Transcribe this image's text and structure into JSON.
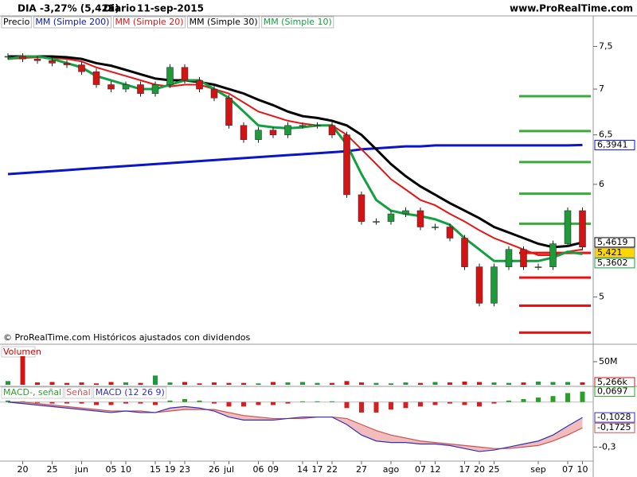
{
  "chart_data": [
    {
      "type": "candlestick",
      "title": "DIA",
      "subtitle": "-3,27% (5,421)",
      "period": "Diario",
      "date": "11-sep-2015",
      "source": "www.ProRealTime.com",
      "note": "© ProRealTime.com Históricos ajustados con dividendos",
      "log": true,
      "ylim": [
        4.65,
        7.88
      ],
      "yticks": [
        {
          "value": 7.5,
          "label": "7,5"
        },
        7,
        {
          "value": 6.5,
          "label": "6,5"
        },
        6,
        5
      ],
      "candle_colors": {
        "up": "#1e9a3a",
        "down": "#d41414"
      },
      "categories": [
        null,
        "20",
        null,
        "25",
        null,
        "jun",
        null,
        "05",
        "10",
        null,
        "15",
        "19",
        "23",
        null,
        "26",
        "jul",
        null,
        "06",
        "09",
        null,
        "14",
        "17",
        "22",
        null,
        "27",
        null,
        "ago",
        null,
        "07",
        "12",
        null,
        "17",
        "20",
        "25",
        null,
        null,
        "sep",
        null,
        "07",
        "10"
      ],
      "series": [
        {
          "name": "Precio",
          "color": "#000000",
          "last_label": "5,421",
          "values": [
            7.38,
            7.35,
            7.33,
            7.3,
            7.28,
            7.2,
            7.05,
            7.0,
            7.05,
            6.95,
            7.05,
            7.25,
            7.1,
            7.0,
            6.9,
            6.6,
            6.45,
            6.55,
            6.5,
            6.6,
            6.6,
            6.6,
            6.5,
            5.9,
            5.65,
            5.65,
            5.72,
            5.75,
            5.6,
            5.6,
            5.5,
            5.25,
            4.95,
            5.25,
            5.4,
            5.25,
            5.25,
            5.45,
            5.75,
            5.421
          ]
        },
        {
          "name": "MM (Simple 200)",
          "color": "#0a14c8",
          "last_label": "6,3941",
          "values": [
            6.1,
            6.11,
            6.12,
            6.13,
            6.14,
            6.15,
            6.16,
            6.17,
            6.18,
            6.19,
            6.2,
            6.21,
            6.22,
            6.23,
            6.24,
            6.25,
            6.26,
            6.27,
            6.28,
            6.29,
            6.3,
            6.31,
            6.32,
            6.33,
            6.35,
            6.36,
            6.37,
            6.38,
            6.38,
            6.39,
            6.39,
            6.39,
            6.39,
            6.39,
            6.39,
            6.39,
            6.39,
            6.39,
            6.39,
            6.3941
          ]
        },
        {
          "name": "MM (Simple 20)",
          "color": "#e81414",
          "values": [
            7.35,
            7.36,
            7.37,
            7.36,
            7.35,
            7.32,
            7.25,
            7.2,
            7.15,
            7.1,
            7.05,
            7.03,
            7.05,
            7.05,
            7.0,
            6.95,
            6.85,
            6.75,
            6.7,
            6.65,
            6.62,
            6.6,
            6.6,
            6.5,
            6.35,
            6.2,
            6.05,
            5.95,
            5.85,
            5.8,
            5.72,
            5.65,
            5.57,
            5.5,
            5.45,
            5.4,
            5.35,
            5.35,
            5.38,
            5.4
          ]
        },
        {
          "name": "MM (Simple 30)",
          "color": "#000000",
          "last_label": "5,4619",
          "values": [
            7.38,
            7.38,
            7.38,
            7.38,
            7.37,
            7.35,
            7.3,
            7.27,
            7.22,
            7.17,
            7.12,
            7.1,
            7.1,
            7.08,
            7.05,
            7.0,
            6.95,
            6.88,
            6.82,
            6.75,
            6.7,
            6.68,
            6.65,
            6.6,
            6.5,
            6.35,
            6.2,
            6.08,
            5.98,
            5.9,
            5.82,
            5.75,
            5.68,
            5.6,
            5.55,
            5.5,
            5.45,
            5.42,
            5.43,
            5.4619
          ]
        },
        {
          "name": "MM (Simple 10)",
          "color": "#12a040",
          "last_label": "5,3602",
          "values": [
            7.35,
            7.38,
            7.38,
            7.35,
            7.3,
            7.25,
            7.15,
            7.1,
            7.05,
            7.0,
            7.0,
            7.05,
            7.1,
            7.1,
            7.0,
            6.9,
            6.75,
            6.6,
            6.58,
            6.57,
            6.58,
            6.6,
            6.6,
            6.4,
            6.1,
            5.85,
            5.75,
            5.72,
            5.7,
            5.67,
            5.62,
            5.5,
            5.4,
            5.3,
            5.3,
            5.3,
            5.3,
            5.33,
            5.38,
            5.3602
          ]
        }
      ],
      "levels": [
        {
          "color": "#3aaa3a",
          "values": [
            6.92,
            6.54,
            6.22,
            5.91,
            5.63
          ]
        },
        {
          "color": "#ee1010",
          "values": [
            5.37,
            5.16,
            4.93,
            4.72
          ]
        }
      ]
    },
    {
      "type": "bar",
      "title": "Volumen",
      "ylim": [
        0,
        81
      ],
      "yticks": [
        {
          "value": 50,
          "label": "50M"
        }
      ],
      "last_label": "5,266k",
      "values": [
        8,
        62,
        5,
        6,
        4,
        5,
        3,
        6,
        5,
        4,
        20,
        5,
        6,
        3,
        5,
        4,
        4,
        3,
        6,
        5,
        6,
        4,
        4,
        8,
        5,
        4,
        3,
        5,
        4,
        6,
        5,
        7,
        6,
        5,
        4,
        5,
        7,
        6,
        6,
        5.266
      ]
    },
    {
      "type": "macd",
      "ylim": [
        -0.394,
        0.094
      ],
      "yticks": [
        {
          "value": -0.3,
          "label": "-0,3"
        }
      ],
      "series": [
        {
          "name": "MACD-, señal",
          "color": "#2aa02a",
          "last_label": "0,0697",
          "values": [
            0.01,
            0.005,
            -0.005,
            -0.01,
            -0.01,
            -0.01,
            -0.02,
            -0.02,
            -0.01,
            -0.01,
            -0.02,
            0.01,
            0.02,
            0.01,
            -0.01,
            -0.03,
            -0.03,
            -0.02,
            -0.02,
            -0.01,
            0.005,
            0.005,
            0.005,
            -0.04,
            -0.07,
            -0.07,
            -0.05,
            -0.04,
            -0.03,
            -0.02,
            -0.01,
            -0.02,
            -0.03,
            -0.01,
            0.01,
            0.02,
            0.03,
            0.04,
            0.06,
            0.0697
          ]
        },
        {
          "name": "Señal",
          "color": "#d05050",
          "last_label": "-0,1725",
          "values": [
            0,
            0,
            -0.01,
            -0.02,
            -0.03,
            -0.04,
            -0.05,
            -0.06,
            -0.06,
            -0.06,
            -0.07,
            -0.06,
            -0.05,
            -0.05,
            -0.05,
            -0.07,
            -0.09,
            -0.1,
            -0.11,
            -0.11,
            -0.11,
            -0.1,
            -0.1,
            -0.11,
            -0.15,
            -0.19,
            -0.22,
            -0.24,
            -0.26,
            -0.27,
            -0.28,
            -0.29,
            -0.3,
            -0.31,
            -0.31,
            -0.3,
            -0.29,
            -0.26,
            -0.22,
            -0.1725
          ]
        },
        {
          "name": "MACD (12 26 9)",
          "color": "#3030c0",
          "last_label": "-0,1028",
          "values": [
            0,
            -0.01,
            -0.02,
            -0.03,
            -0.04,
            -0.05,
            -0.06,
            -0.07,
            -0.06,
            -0.07,
            -0.07,
            -0.04,
            -0.03,
            -0.04,
            -0.06,
            -0.1,
            -0.12,
            -0.12,
            -0.12,
            -0.11,
            -0.1,
            -0.1,
            -0.1,
            -0.15,
            -0.22,
            -0.26,
            -0.27,
            -0.27,
            -0.28,
            -0.28,
            -0.29,
            -0.31,
            -0.33,
            -0.32,
            -0.3,
            -0.28,
            -0.26,
            -0.22,
            -0.16,
            -0.1028
          ]
        }
      ]
    }
  ]
}
